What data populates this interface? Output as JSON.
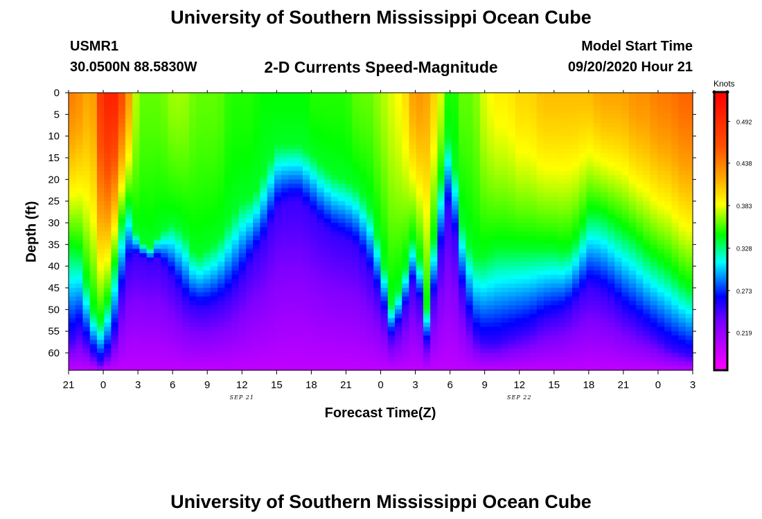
{
  "title_top": "University of Southern Mississippi Ocean Cube",
  "title_bottom": "University of Southern Mississippi Ocean Cube",
  "station": {
    "id": "USMR1",
    "coords": "30.0500N 88.5830W"
  },
  "model": {
    "label": "Model Start Time",
    "time": "09/20/2020 Hour 21"
  },
  "chart_data": {
    "type": "heatmap",
    "title": "2-D Currents Speed-Magnitude",
    "xlabel": "Forecast Time(Z)",
    "ylabel": "Depth (ft)",
    "x_range_hours": [
      0,
      54
    ],
    "x_ticks": [
      {
        "h": 0,
        "label": "21"
      },
      {
        "h": 3,
        "label": "0"
      },
      {
        "h": 6,
        "label": "3"
      },
      {
        "h": 9,
        "label": "6"
      },
      {
        "h": 12,
        "label": "9"
      },
      {
        "h": 15,
        "label": "12"
      },
      {
        "h": 18,
        "label": "15"
      },
      {
        "h": 21,
        "label": "18"
      },
      {
        "h": 24,
        "label": "21"
      },
      {
        "h": 27,
        "label": "0"
      },
      {
        "h": 30,
        "label": "3"
      },
      {
        "h": 33,
        "label": "6"
      },
      {
        "h": 36,
        "label": "9"
      },
      {
        "h": 39,
        "label": "12"
      },
      {
        "h": 42,
        "label": "15"
      },
      {
        "h": 45,
        "label": "18"
      },
      {
        "h": 48,
        "label": "21"
      },
      {
        "h": 51,
        "label": "0"
      },
      {
        "h": 54,
        "label": "3"
      }
    ],
    "date_labels": [
      {
        "h": 15,
        "label": "SEP 21"
      },
      {
        "h": 39,
        "label": "SEP 22"
      }
    ],
    "y_range_ft": [
      0,
      64
    ],
    "y_ticks": [
      0,
      5,
      10,
      15,
      20,
      25,
      30,
      35,
      40,
      45,
      50,
      55,
      60
    ],
    "colorbar": {
      "label": "Knots",
      "range": [
        0.17,
        0.53
      ],
      "ticks": [
        0.492,
        0.438,
        0.383,
        0.328,
        0.273,
        0.219
      ],
      "tick_labels": [
        "0.492",
        "0.438",
        "0.383",
        "0.328",
        "0.273",
        "0.219"
      ],
      "stops": [
        {
          "v": 0.17,
          "c": "#ff00ff"
        },
        {
          "v": 0.23,
          "c": "#8000ff"
        },
        {
          "v": 0.265,
          "c": "#0000ff"
        },
        {
          "v": 0.31,
          "c": "#00ffff"
        },
        {
          "v": 0.345,
          "c": "#00ff00"
        },
        {
          "v": 0.385,
          "c": "#ffff00"
        },
        {
          "v": 0.42,
          "c": "#ffa500"
        },
        {
          "v": 0.46,
          "c": "#ff5000"
        },
        {
          "v": 0.53,
          "c": "#ff0000"
        }
      ]
    },
    "hours": [
      0,
      1,
      2,
      3,
      4,
      5,
      6,
      7,
      8,
      9,
      10,
      11,
      12,
      13,
      14,
      15,
      16,
      17,
      18,
      19,
      20,
      21,
      22,
      23,
      24,
      25,
      26,
      27,
      28,
      29,
      30,
      31,
      32,
      33,
      34,
      35,
      36,
      37,
      38,
      39,
      40,
      41,
      42,
      43,
      44,
      45,
      46,
      47,
      48,
      49,
      50,
      51,
      52,
      53,
      54
    ],
    "surface_speed_kn": [
      0.44,
      0.43,
      0.41,
      0.5,
      0.5,
      0.44,
      0.36,
      0.36,
      0.36,
      0.37,
      0.37,
      0.36,
      0.36,
      0.36,
      0.35,
      0.35,
      0.35,
      0.34,
      0.34,
      0.34,
      0.34,
      0.35,
      0.35,
      0.35,
      0.35,
      0.36,
      0.36,
      0.37,
      0.38,
      0.39,
      0.43,
      0.42,
      0.39,
      0.34,
      0.36,
      0.36,
      0.38,
      0.39,
      0.39,
      0.4,
      0.4,
      0.41,
      0.41,
      0.41,
      0.41,
      0.41,
      0.42,
      0.42,
      0.42,
      0.43,
      0.43,
      0.44,
      0.44,
      0.45,
      0.45
    ],
    "isoline_green_ft": [
      36,
      37,
      50,
      54,
      40,
      24,
      34,
      36,
      32,
      30,
      32,
      38,
      36,
      34,
      29,
      25,
      24,
      18,
      12,
      12,
      12,
      14,
      17,
      19,
      20,
      22,
      26,
      36,
      50,
      42,
      32,
      50,
      24,
      8,
      30,
      38,
      38,
      36,
      36,
      36,
      36,
      36,
      36,
      37,
      34,
      28,
      28,
      30,
      32,
      34,
      37,
      39,
      41,
      44,
      46
    ],
    "isoline_purple_ft": [
      58,
      55,
      60,
      63,
      56,
      40,
      37,
      37,
      39,
      43,
      48,
      50,
      50,
      49,
      47,
      43,
      38,
      34,
      27,
      25,
      25,
      28,
      31,
      33,
      34,
      36,
      41,
      48,
      57,
      51,
      42,
      58,
      40,
      24,
      45,
      56,
      58,
      58,
      57,
      56,
      55,
      53,
      52,
      51,
      48,
      45,
      46,
      48,
      51,
      53,
      55,
      57,
      59,
      60,
      61
    ]
  }
}
